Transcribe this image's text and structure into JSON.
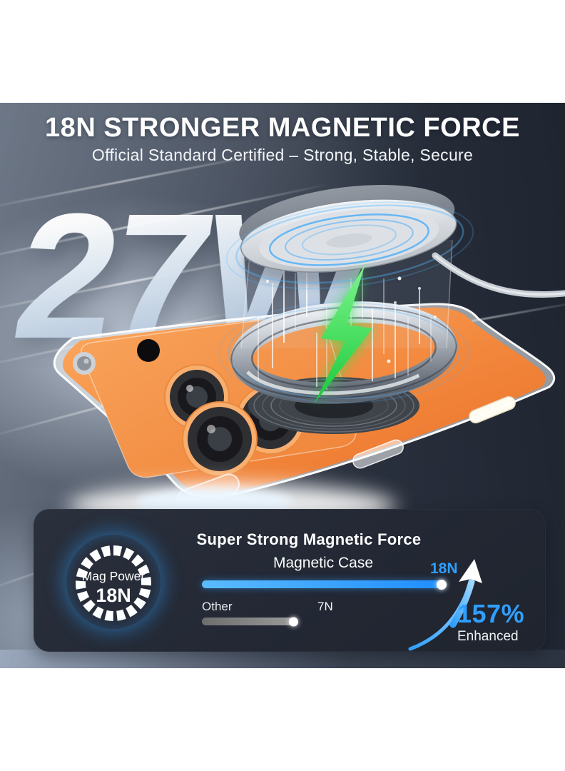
{
  "hero": {
    "title": "18N STRONGER MAGNETIC FORCE",
    "subtitle": "Official Standard Certified – Strong, Stable, Secure",
    "watermark": "27W"
  },
  "badge": {
    "line1": "Mag Power",
    "line2": "18N"
  },
  "chart_data": {
    "type": "bar",
    "orientation": "horizontal",
    "title": "Super Strong Magnetic Force",
    "unit": "N",
    "max_value": 18,
    "bars": [
      {
        "label": "Magnetic Case",
        "value": 18,
        "value_label": "18N",
        "color": "#1f8dff",
        "color_light": "#5bbcff"
      },
      {
        "label": "Other",
        "value": 7,
        "value_label": "7N",
        "color": "#9a9a9a",
        "color_light": "#6e6e6e"
      }
    ],
    "annotation": {
      "percent": "157%",
      "label": "Enhanced"
    }
  },
  "colors": {
    "accent_blue": "#2f9fff",
    "bolt_green": "#35d94a",
    "phone_orange": "#f08138",
    "background_navy": "#2e3542",
    "panel_dark": "#242a35"
  },
  "icons": {
    "lightning_icon": "charging bolt",
    "growth_arrow_icon": "curved arrow up",
    "mag_ring_icon": "segmented magnet ring"
  }
}
